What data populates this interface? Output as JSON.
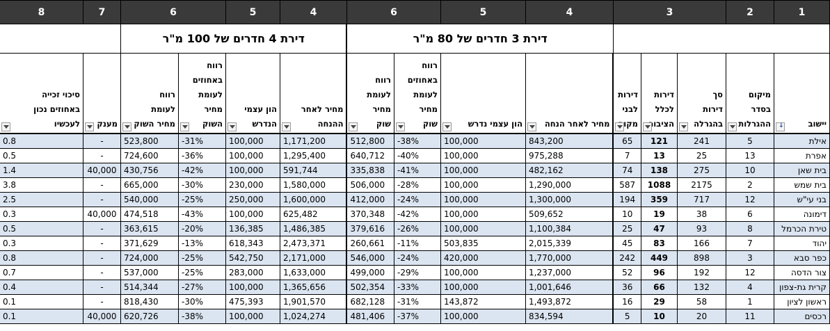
{
  "column_numbers": [
    "1",
    "2",
    "3",
    "4",
    "5",
    "6",
    "4",
    "5",
    "6",
    "7",
    "8"
  ],
  "groups": {
    "apt3": "דירת 3 חדרים של 80 מ\"ר",
    "apt4": "דירת 4 חדרים של 100 מ\"ר"
  },
  "headers": [
    {
      "text": "יישוב",
      "sorted": true
    },
    {
      "text": "מיקום בסדר ההגרלות",
      "sorted": false
    },
    {
      "text": "סך דירות בהגרלה",
      "sorted": false
    },
    {
      "text": "דירות לכלל הציבור",
      "sorted": false
    },
    {
      "text": "דירות לבני מקום",
      "sorted": false
    },
    {
      "text": "מחיר לאחר הנחה",
      "sorted": false
    },
    {
      "text": "הון עצמי נדרש",
      "sorted": false
    },
    {
      "text": "רווח באחוזים לעומת מחיר שוק",
      "sorted": false
    },
    {
      "text": "רווח לעומת מחיר שוק",
      "sorted": false
    },
    {
      "text": "מחיר לאחר ההנחה",
      "sorted": false
    },
    {
      "text": "הון עצמי הנדרש",
      "sorted": false
    },
    {
      "text": "רווח באחוזים לעומת מחיר השוק",
      "sorted": false
    },
    {
      "text": "רווח לעומת מחיר השוק",
      "sorted": false
    },
    {
      "text": "מענק",
      "sorted": false
    },
    {
      "text": "סיכוי זכייה באחוזים נכון לעכשיו",
      "sorted": false
    }
  ],
  "rows": [
    [
      "אילת",
      "5",
      "241",
      "121",
      "65",
      "843,200",
      "100,000",
      "-38%",
      "512,800",
      "1,171,200",
      "100,000",
      "-31%",
      "523,800",
      "-",
      "0.8"
    ],
    [
      "אפרת",
      "13",
      "25",
      "13",
      "7",
      "975,288",
      "100,000",
      "-40%",
      "640,712",
      "1,295,400",
      "100,000",
      "-36%",
      "724,600",
      "-",
      "0.5"
    ],
    [
      "בית שאן",
      "10",
      "275",
      "138",
      "74",
      "482,162",
      "100,000",
      "-41%",
      "335,838",
      "591,744",
      "100,000",
      "-42%",
      "430,756",
      "40,000",
      "1.4"
    ],
    [
      "בית שמש",
      "2",
      "2175",
      "1088",
      "587",
      "1,290,000",
      "100,000",
      "-28%",
      "506,000",
      "1,580,000",
      "230,000",
      "-30%",
      "665,000",
      "-",
      "3.8"
    ],
    [
      "בני עי\"ש",
      "12",
      "717",
      "359",
      "194",
      "1,300,000",
      "100,000",
      "-24%",
      "412,000",
      "1,600,000",
      "250,000",
      "-25%",
      "540,000",
      "-",
      "2.5"
    ],
    [
      "דימונה",
      "6",
      "38",
      "19",
      "10",
      "509,652",
      "100,000",
      "-42%",
      "370,348",
      "625,482",
      "100,000",
      "-43%",
      "474,518",
      "40,000",
      "0.3"
    ],
    [
      "טירת הכרמל",
      "8",
      "93",
      "47",
      "25",
      "1,100,384",
      "100,000",
      "-26%",
      "379,616",
      "1,486,385",
      "136,385",
      "-20%",
      "363,615",
      "-",
      "0.5"
    ],
    [
      "יהוד",
      "7",
      "166",
      "83",
      "45",
      "2,015,339",
      "503,835",
      "-11%",
      "260,661",
      "2,473,371",
      "618,343",
      "-13%",
      "371,629",
      "-",
      "0.3"
    ],
    [
      "כפר סבא",
      "3",
      "898",
      "449",
      "242",
      "1,770,000",
      "420,000",
      "-24%",
      "546,000",
      "2,171,000",
      "542,750",
      "-25%",
      "724,000",
      "-",
      "0.8"
    ],
    [
      "צור הדסה",
      "12",
      "192",
      "96",
      "52",
      "1,237,000",
      "100,000",
      "-29%",
      "499,000",
      "1,633,000",
      "283,000",
      "-25%",
      "537,000",
      "-",
      "0.7"
    ],
    [
      "קרית גת-צפון",
      "4",
      "132",
      "66",
      "36",
      "1,001,646",
      "100,000",
      "-33%",
      "502,354",
      "1,365,656",
      "100,000",
      "-27%",
      "514,344",
      "-",
      "0.4"
    ],
    [
      "ראשון לציון",
      "1",
      "58",
      "29",
      "16",
      "1,493,872",
      "143,872",
      "-31%",
      "682,128",
      "1,901,570",
      "475,393",
      "-30%",
      "818,430",
      "-",
      "0.1"
    ],
    [
      "רכסים",
      "11",
      "20",
      "10",
      "5",
      "834,594",
      "100,000",
      "-37%",
      "481,406",
      "1,024,274",
      "100,000",
      "-38%",
      "620,726",
      "40,000",
      "0.1"
    ]
  ],
  "colors": {
    "header_bg": "#3a3a3a",
    "band": "#dbe5f1"
  }
}
